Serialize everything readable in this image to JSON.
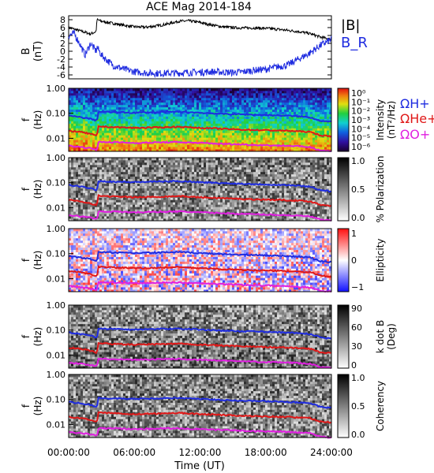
{
  "figure": {
    "title": "ACE Mag 2014-184",
    "xlabel": "Time (UT)",
    "xtick_labels": [
      "00:00:00",
      "06:00:00",
      "12:00:00",
      "18:00:00",
      "24:00:00"
    ]
  },
  "chart_data": [
    {
      "type": "line",
      "title": "ACE Mag 2014-184",
      "ylabel": "B",
      "yunit": "(nT)",
      "ylim": [
        -7,
        9
      ],
      "yticks": [
        8,
        6,
        4,
        2,
        0,
        -2,
        -4,
        -6
      ],
      "xlim": [
        0,
        24
      ],
      "series": [
        {
          "name": "|B|",
          "color": "#000000",
          "x": [
            0,
            0.5,
            1,
            1.5,
            2,
            2.5,
            2.6,
            3,
            4,
            5,
            6,
            7,
            8,
            9,
            10,
            11,
            12,
            13,
            14,
            15,
            16,
            17,
            18,
            19,
            20,
            21,
            22,
            23,
            24
          ],
          "y": [
            6,
            5.6,
            5.2,
            4.8,
            4.4,
            5,
            8,
            7.6,
            7.1,
            6.6,
            6.2,
            6.1,
            6.4,
            6.9,
            7.6,
            7.7,
            7.3,
            6.7,
            6.2,
            6,
            5.9,
            5.9,
            5.8,
            5.6,
            5.3,
            5,
            4.5,
            3.6,
            3
          ]
        },
        {
          "name": "B_R",
          "color": "#1f2ce0",
          "x": [
            0,
            0.5,
            1,
            1.5,
            2,
            2.5,
            2.6,
            3,
            4,
            5,
            6,
            7,
            8,
            9,
            10,
            11,
            12,
            13,
            14,
            15,
            16,
            17,
            18,
            19,
            20,
            21,
            22,
            23,
            24
          ],
          "y": [
            4,
            4.5,
            2,
            -1,
            2,
            0,
            1,
            -1,
            -3.5,
            -4.5,
            -5.2,
            -5.5,
            -5.6,
            -5.6,
            -5.5,
            -5.4,
            -5.3,
            -5.2,
            -5.3,
            -5.4,
            -5.2,
            -4.8,
            -4.6,
            -4,
            -3.5,
            -2,
            -0.5,
            1.5,
            3
          ]
        }
      ]
    },
    {
      "type": "heatmap",
      "ylabel": "f",
      "yunit": "(Hz)",
      "yscale": "log",
      "ylim": [
        0.003,
        1.0
      ],
      "ytick_labels": [
        "1.00",
        "0.10",
        "0.01"
      ],
      "colorbar": {
        "label": "Intensity",
        "unit": "(nT²/Hz)",
        "tick_labels": [
          "10⁰",
          "10⁻¹",
          "10⁻²",
          "10⁻³",
          "10⁻⁴",
          "10⁻⁵",
          "10⁻⁶"
        ]
      },
      "overlays": [
        {
          "name": "ΩH+",
          "color": "#1f2ce0"
        },
        {
          "name": "ΩHe+",
          "color": "#e01818"
        },
        {
          "name": "ΩO+",
          "color": "#e020e0"
        }
      ]
    },
    {
      "type": "heatmap",
      "ylabel": "f",
      "yunit": "(Hz)",
      "yscale": "log",
      "ylim": [
        0.003,
        1.0
      ],
      "ytick_labels": [
        "1.00",
        "0.10",
        "0.01"
      ],
      "colorbar": {
        "label": "% Polarization",
        "tick_labels": [
          "1.0",
          "0.5",
          "0.0"
        ]
      }
    },
    {
      "type": "heatmap",
      "ylabel": "f",
      "yunit": "(Hz)",
      "yscale": "log",
      "ylim": [
        0.003,
        1.0
      ],
      "ytick_labels": [
        "1.00",
        "0.10",
        "0.01"
      ],
      "colorbar": {
        "label": "Ellipticity",
        "tick_labels": [
          "1",
          "0",
          "−1"
        ]
      }
    },
    {
      "type": "heatmap",
      "ylabel": "f",
      "yunit": "(Hz)",
      "yscale": "log",
      "ylim": [
        0.003,
        1.0
      ],
      "ytick_labels": [
        "1.00",
        "0.10",
        "0.01"
      ],
      "colorbar": {
        "label": "k dot B",
        "unit": "(Deg)",
        "tick_labels": [
          "90",
          "60",
          "30",
          "0"
        ]
      }
    },
    {
      "type": "heatmap",
      "ylabel": "f",
      "yunit": "(Hz)",
      "yscale": "log",
      "ylim": [
        0.003,
        1.0
      ],
      "ytick_labels": [
        "1.00",
        "0.10",
        "0.01"
      ],
      "colorbar": {
        "label": "Coherency",
        "tick_labels": [
          "1.0",
          "0.5",
          "0.0"
        ]
      }
    }
  ],
  "gyrofrequency_lines": {
    "x": [
      0,
      1,
      2,
      2.6,
      2.7,
      4,
      6,
      8,
      10,
      12,
      14,
      16,
      18,
      20,
      22,
      23,
      24
    ],
    "H+": [
      0.08,
      0.07,
      0.06,
      0.05,
      0.115,
      0.11,
      0.105,
      0.11,
      0.115,
      0.105,
      0.095,
      0.09,
      0.085,
      0.08,
      0.07,
      0.05,
      0.045
    ],
    "He+": [
      0.02,
      0.018,
      0.015,
      0.012,
      0.03,
      0.028,
      0.026,
      0.027,
      0.029,
      0.026,
      0.024,
      0.022,
      0.021,
      0.02,
      0.018,
      0.013,
      0.012
    ],
    "O+": [
      0.005,
      0.0045,
      0.004,
      0.0035,
      0.007,
      0.007,
      0.0065,
      0.0068,
      0.007,
      0.0065,
      0.006,
      0.0056,
      0.0053,
      0.005,
      0.0045,
      0.0033,
      0.003
    ]
  },
  "colors": {
    "h_plus": "#1f2ce0",
    "he_plus": "#e01818",
    "o_plus": "#e020e0"
  }
}
